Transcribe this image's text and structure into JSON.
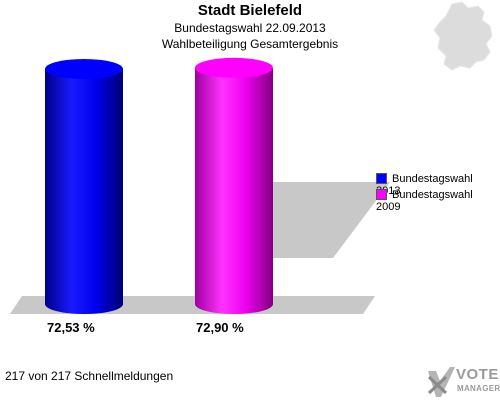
{
  "header": {
    "title": "Stadt Bielefeld",
    "subtitle": "Bundestagswahl 22.09.2013",
    "subtitle2": "Wahlbeteiligung Gesamtergebnis"
  },
  "footer": {
    "text": "217 von 217 Schnellmeldungen"
  },
  "logo": {
    "line1": "VOTE",
    "line2": "MANAGER"
  },
  "colors": {
    "series_2013": "#0000ff",
    "series_2009": "#ff00ff",
    "floor": "#c8c8c8"
  },
  "chart_data": {
    "type": "bar",
    "series": [
      {
        "name": "Bundestagswahl 2013",
        "value": 72.53,
        "label": "72,53 %",
        "color": "#0000ff"
      },
      {
        "name": "Bundestagswahl 2009",
        "value": 72.9,
        "label": "72,90 %",
        "color": "#ff00ff"
      }
    ],
    "ylim": [
      0,
      80
    ],
    "legend_position": "right",
    "grid": false
  }
}
